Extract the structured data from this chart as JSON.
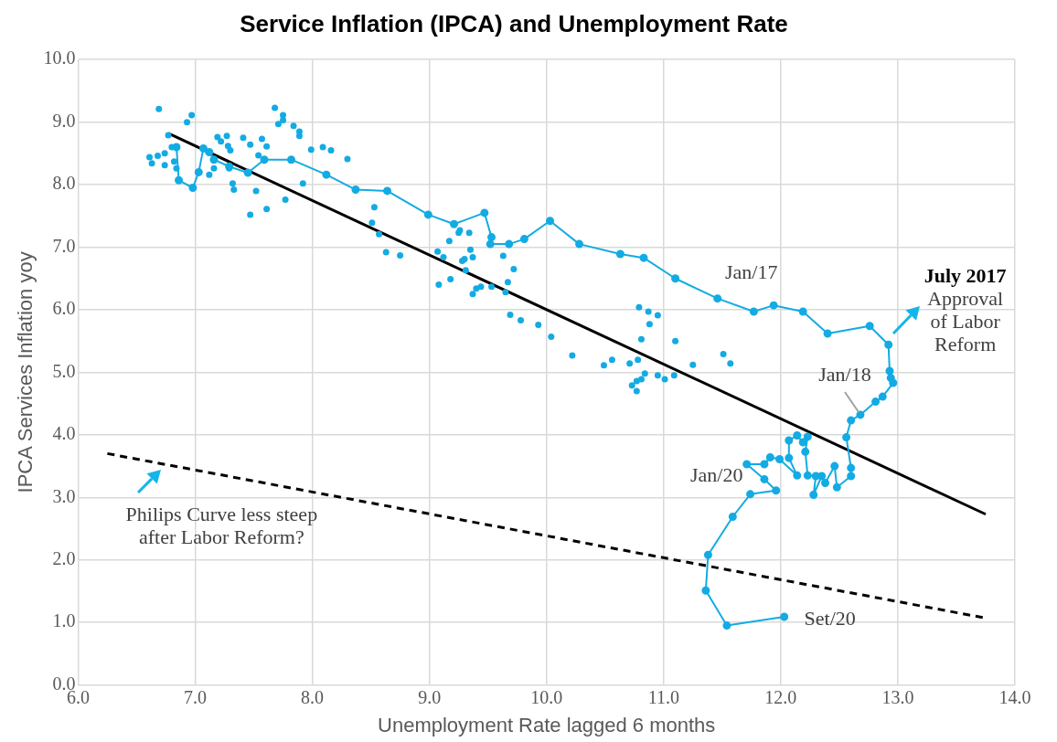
{
  "chart_data": {
    "type": "scatter",
    "title": "Service Inflation (IPCA) and Unemployment Rate",
    "xlabel": "Unemployment Rate lagged 6 months",
    "ylabel": "IPCA Services Inflation yoy",
    "xlim": [
      6,
      14
    ],
    "xticks": [
      {
        "value": 6,
        "label": "6.0"
      },
      {
        "value": 7,
        "label": "7.0"
      },
      {
        "value": 8,
        "label": "8.0"
      },
      {
        "value": 9,
        "label": "9.0"
      },
      {
        "value": 10,
        "label": "10.0"
      },
      {
        "value": 11,
        "label": "11.0"
      },
      {
        "value": 12,
        "label": "12.0"
      },
      {
        "value": 13,
        "label": "13.0"
      },
      {
        "value": 14,
        "label": "14.0"
      }
    ],
    "ylim": [
      0,
      10
    ],
    "yticks": [
      {
        "value": 0,
        "label": "0.0"
      },
      {
        "value": 1,
        "label": "1.0"
      },
      {
        "value": 2,
        "label": "2.0"
      },
      {
        "value": 3,
        "label": "3.0"
      },
      {
        "value": 4,
        "label": "4.0"
      },
      {
        "value": 5,
        "label": "5.0"
      },
      {
        "value": 6,
        "label": "6.0"
      },
      {
        "value": 7,
        "label": "7.0"
      },
      {
        "value": 8,
        "label": "8.0"
      },
      {
        "value": 9,
        "label": "9.0"
      },
      {
        "value": 10,
        "label": "10.0"
      }
    ],
    "grid": true,
    "legend": false,
    "marker": "circle",
    "series": [
      {
        "color": "#13abe3",
        "x": [
          6.69,
          6.97,
          6.93,
          6.61,
          6.63,
          6.68,
          6.74,
          6.74,
          6.77,
          6.8,
          6.82,
          6.84,
          7.12,
          7.16,
          7.19,
          7.27,
          7.22,
          7.28,
          7.3,
          7.29,
          7.32,
          7.33,
          7.41,
          7.47,
          7.52,
          7.47,
          7.54,
          7.57,
          7.61,
          7.61,
          7.77,
          7.68,
          7.75,
          7.75,
          7.71,
          7.84,
          7.89,
          7.89,
          7.92,
          7.99,
          8.09,
          8.16,
          8.3,
          8.53,
          8.51,
          8.57,
          8.63,
          8.75,
          9.07,
          9.12,
          9.08,
          9.18,
          9.17,
          9.25,
          9.26,
          9.34,
          9.35,
          9.37,
          9.28,
          9.3,
          9.31,
          9.4,
          9.37,
          9.44,
          9.53,
          9.63,
          9.72,
          9.67,
          9.65,
          9.69,
          9.78,
          9.93,
          10.04,
          10.22,
          10.49,
          10.56,
          10.71,
          10.78,
          10.79,
          10.87,
          10.95,
          10.88,
          10.81,
          11.1,
          10.95,
          11.01,
          11.09,
          11.25,
          11.51,
          11.57,
          10.84,
          10.81,
          10.77,
          10.73,
          10.77
        ],
        "values": [
          9.21,
          9.11,
          9.0,
          8.44,
          8.34,
          8.46,
          8.5,
          8.31,
          8.79,
          8.6,
          8.37,
          8.26,
          8.16,
          8.26,
          8.76,
          8.78,
          8.69,
          8.62,
          8.55,
          8.26,
          8.02,
          7.92,
          8.75,
          8.64,
          7.9,
          7.52,
          8.47,
          8.73,
          8.61,
          7.61,
          7.76,
          9.23,
          9.11,
          9.03,
          8.97,
          8.94,
          8.85,
          8.78,
          8.02,
          8.56,
          8.6,
          8.55,
          8.41,
          7.64,
          7.39,
          7.21,
          6.92,
          6.87,
          6.93,
          6.84,
          6.4,
          6.49,
          7.1,
          7.23,
          7.27,
          7.23,
          6.96,
          6.84,
          6.78,
          6.81,
          6.63,
          6.34,
          6.25,
          6.37,
          6.37,
          6.86,
          6.65,
          6.44,
          6.28,
          5.92,
          5.83,
          5.76,
          5.57,
          5.27,
          5.11,
          5.2,
          5.14,
          5.2,
          6.04,
          5.97,
          5.91,
          5.77,
          5.53,
          5.5,
          4.95,
          4.89,
          4.95,
          5.12,
          5.29,
          5.14,
          4.98,
          4.89,
          4.86,
          4.79,
          4.7
        ]
      },
      {
        "type": "line",
        "color": "#13abe3",
        "x": [
          6.84,
          6.86,
          6.98,
          7.03,
          7.07,
          7.12,
          7.16,
          7.29,
          7.45,
          7.59,
          7.82,
          8.12,
          8.37,
          8.64,
          8.99,
          9.21,
          9.47,
          9.53,
          9.52,
          9.68,
          9.81,
          10.03,
          10.28,
          10.63,
          10.83,
          11.1,
          11.46,
          11.77,
          11.94,
          12.19,
          12.4,
          12.76,
          12.92,
          12.93,
          12.94,
          12.96,
          12.87,
          12.81,
          12.68,
          12.6,
          12.56,
          12.6,
          12.6,
          12.48,
          12.46,
          12.38,
          12.35,
          12.28,
          12.3,
          12.23,
          12.21,
          12.23,
          12.19,
          12.14,
          12.07,
          12.07,
          12.14,
          11.99,
          11.91,
          11.86,
          11.71,
          11.86,
          11.96,
          11.74,
          11.59,
          11.38,
          11.36,
          11.54,
          12.03
        ],
        "values": [
          8.6,
          8.07,
          7.95,
          8.2,
          8.58,
          8.52,
          8.4,
          8.29,
          8.19,
          8.4,
          8.4,
          8.16,
          7.92,
          7.9,
          7.52,
          7.37,
          7.55,
          7.16,
          7.05,
          7.05,
          7.13,
          7.42,
          7.05,
          6.89,
          6.83,
          6.5,
          6.18,
          5.97,
          6.07,
          5.97,
          5.62,
          5.74,
          5.44,
          5.02,
          4.91,
          4.83,
          4.61,
          4.53,
          4.32,
          4.23,
          3.96,
          3.47,
          3.34,
          3.16,
          3.5,
          3.23,
          3.34,
          3.04,
          3.34,
          3.35,
          3.73,
          3.97,
          3.88,
          3.99,
          3.91,
          3.63,
          3.35,
          3.61,
          3.64,
          3.53,
          3.53,
          3.29,
          3.11,
          3.05,
          2.69,
          2.08,
          1.51,
          0.95,
          1.09
        ]
      },
      {
        "type": "line",
        "color": "#000000",
        "marker": "none",
        "line_style": "solid",
        "x": [
          6.77,
          13.75
        ],
        "values": [
          8.82,
          2.73
        ]
      },
      {
        "type": "line",
        "color": "#000000",
        "marker": "none",
        "line_style": "dashed",
        "x": [
          6.25,
          13.75
        ],
        "values": [
          3.7,
          1.07
        ]
      }
    ],
    "annotations": [
      {
        "text": "Jan/17",
        "x": 11.46,
        "y": 6.18
      },
      {
        "text": "Jan/18",
        "x": 12.68,
        "y": 4.32
      },
      {
        "text": "Jan/20",
        "x": 11.71,
        "y": 3.53
      },
      {
        "text": "Set/20",
        "x": 12.03,
        "y": 1.09
      },
      {
        "text": "July 2017\nApproval\nof Labor\nReform",
        "x": 12.92,
        "y": 5.44
      },
      {
        "text": "Philips Curve less steep\nafter Labor Reform?",
        "x": 6.71,
        "y": 3.54
      }
    ]
  }
}
